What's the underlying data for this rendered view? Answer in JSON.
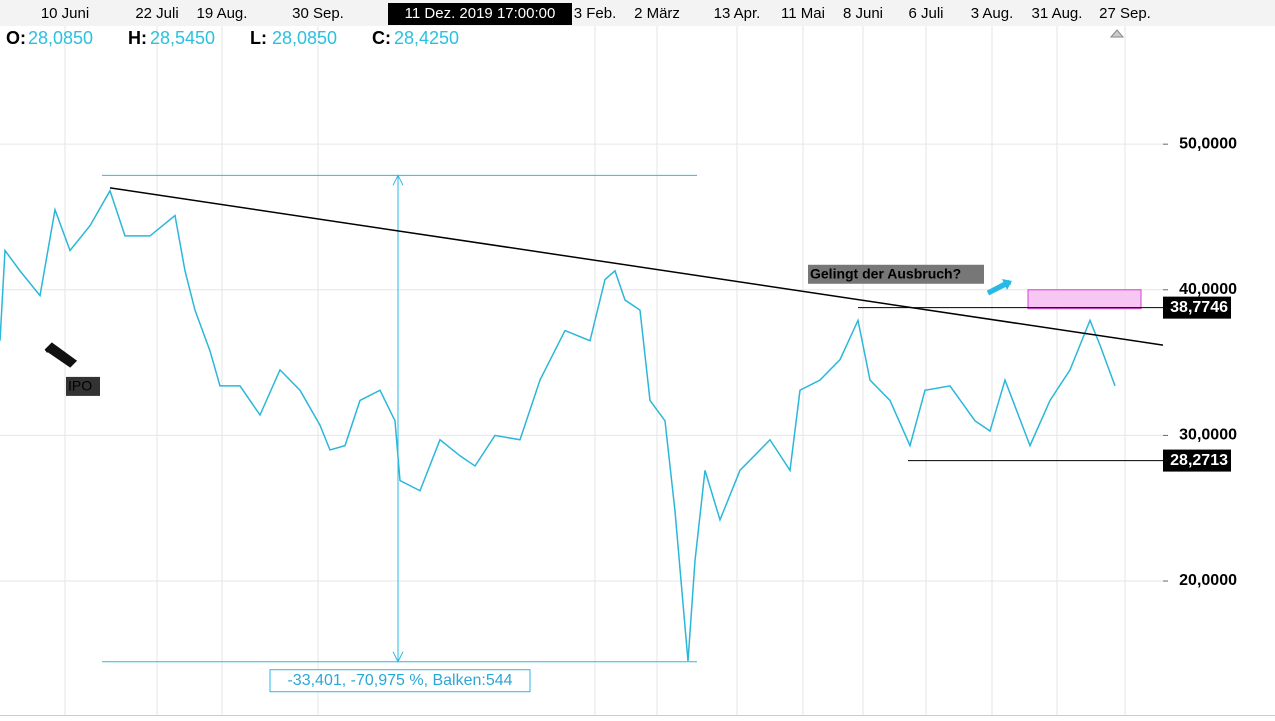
{
  "chart_data": {
    "type": "line",
    "crosshair_label": {
      "text": "11 Dez. 2019 17:00:00",
      "x": 480
    },
    "ohlc": [
      {
        "name": "O:",
        "value": 28.085,
        "label": "28,0850"
      },
      {
        "name": "H:",
        "value": 28.545,
        "label": "28,5450"
      },
      {
        "name": "L:",
        "value": 28.085,
        "label": "28,0850"
      },
      {
        "name": "C:",
        "value": 28.425,
        "label": "28,4250"
      }
    ],
    "xlim": [
      0,
      1163
    ],
    "xticks": [
      {
        "value": 65,
        "label": "10 Juni"
      },
      {
        "value": 157,
        "label": "22 Juli"
      },
      {
        "value": 222,
        "label": "19 Aug."
      },
      {
        "value": 318,
        "label": "30 Sep."
      },
      {
        "value": 595,
        "label": "3 Feb."
      },
      {
        "value": 657,
        "label": "2 März"
      },
      {
        "value": 737,
        "label": "13 Apr."
      },
      {
        "value": 803,
        "label": "11 Mai"
      },
      {
        "value": 863,
        "label": "8 Juni"
      },
      {
        "value": 926,
        "label": "6 Juli"
      },
      {
        "value": 992,
        "label": "3 Aug."
      },
      {
        "value": 1057,
        "label": "31 Aug."
      },
      {
        "value": 1125,
        "label": "27 Sep."
      }
    ],
    "ylim": [
      10.8,
      59.9
    ],
    "yticks": [
      {
        "value": 20,
        "label": "20,0000"
      },
      {
        "value": 30,
        "label": "30,0000"
      },
      {
        "value": 40,
        "label": "40,0000"
      },
      {
        "value": 50,
        "label": "50,0000"
      }
    ],
    "grid": true,
    "series": [
      {
        "color": "#2bb7d9",
        "x": [
          0,
          5,
          20,
          40,
          55,
          70,
          90,
          110,
          125,
          150,
          175,
          185,
          195,
          210,
          220,
          240,
          260,
          280,
          300,
          320,
          330,
          345,
          360,
          380,
          395,
          400,
          420,
          440,
          460,
          475,
          495,
          520,
          540,
          565,
          590,
          605,
          615,
          625,
          640,
          650,
          665,
          675,
          688,
          695,
          705,
          720,
          740,
          770,
          790,
          800,
          820,
          840,
          858,
          870,
          890,
          910,
          925,
          950,
          975,
          990,
          1005,
          1030,
          1050,
          1070,
          1090,
          1100,
          1115
        ],
        "values": [
          36.5,
          42.7,
          41.3,
          39.6,
          45.5,
          42.7,
          44.4,
          46.8,
          43.7,
          43.7,
          45.1,
          41.3,
          38.6,
          35.8,
          33.4,
          33.4,
          31.4,
          34.5,
          33.1,
          30.7,
          29.0,
          29.3,
          32.4,
          33.1,
          31.0,
          26.9,
          26.2,
          29.7,
          28.6,
          27.9,
          30.0,
          29.7,
          33.8,
          37.2,
          36.5,
          40.7,
          41.3,
          39.3,
          38.6,
          32.4,
          31.0,
          24.8,
          14.5,
          21.4,
          27.6,
          24.2,
          27.6,
          29.7,
          27.6,
          33.1,
          33.8,
          35.2,
          37.9,
          33.8,
          32.4,
          29.3,
          33.1,
          33.4,
          31.0,
          30.3,
          33.8,
          29.3,
          32.4,
          34.5,
          37.9,
          36.2,
          33.4
        ]
      }
    ],
    "trendline": {
      "x": [
        110,
        1163
      ],
      "y": [
        47.0,
        36.2
      ]
    },
    "levels": [
      {
        "value": 38.7746,
        "label": "38,7746",
        "x0": 858
      },
      {
        "value": 28.2713,
        "label": "28,2713",
        "x0": 908
      }
    ],
    "measure": {
      "x0": 102,
      "x1": 697,
      "x": 398,
      "from": 47.86,
      "to": 14.46,
      "label": "-33,401, -70,975 %, Balken:544"
    },
    "zone": {
      "x0": 1028,
      "x1": 1141,
      "y0": 38.7,
      "y1": 40.0
    },
    "annotations": [
      {
        "text": "Gelingt der Ausbruch?",
        "x": 808,
        "y": 41.1
      },
      {
        "text": "IPO",
        "x": 66,
        "y": 33.4
      }
    ]
  }
}
